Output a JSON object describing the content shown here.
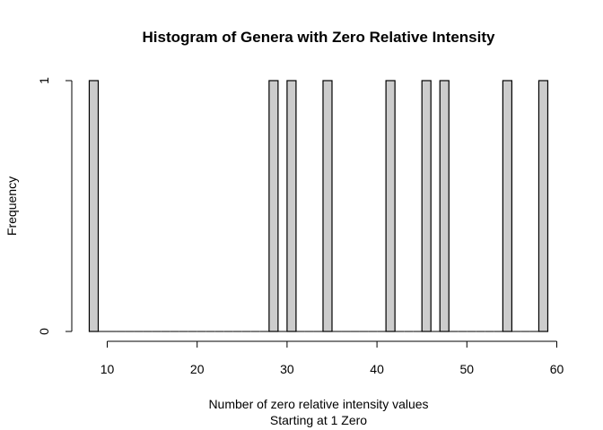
{
  "chart_data": {
    "type": "bar",
    "title": "Histogram of Genera with Zero Relative Intensity",
    "xlabel": "Number of zero relative intensity values",
    "xlabel2": "Starting at 1 Zero",
    "ylabel": "Frequency",
    "bin_width": 1,
    "bins_start": 8,
    "bins_end": 59,
    "x_ticks": [
      10,
      20,
      30,
      40,
      50,
      60
    ],
    "y_ticks": [
      0,
      1
    ],
    "xlim": [
      6,
      60
    ],
    "ylim": [
      0,
      1
    ],
    "bars": [
      {
        "x0": 8,
        "x1": 9,
        "count": 1
      },
      {
        "x0": 28,
        "x1": 29,
        "count": 1
      },
      {
        "x0": 30,
        "x1": 31,
        "count": 1
      },
      {
        "x0": 34,
        "x1": 35,
        "count": 1
      },
      {
        "x0": 41,
        "x1": 42,
        "count": 1
      },
      {
        "x0": 45,
        "x1": 46,
        "count": 1
      },
      {
        "x0": 47,
        "x1": 48,
        "count": 1
      },
      {
        "x0": 54,
        "x1": 55,
        "count": 1
      },
      {
        "x0": 58,
        "x1": 59,
        "count": 1
      }
    ],
    "bar_fill": "#cccccc",
    "bar_stroke": "#000000",
    "grid": false,
    "legend": "none"
  }
}
